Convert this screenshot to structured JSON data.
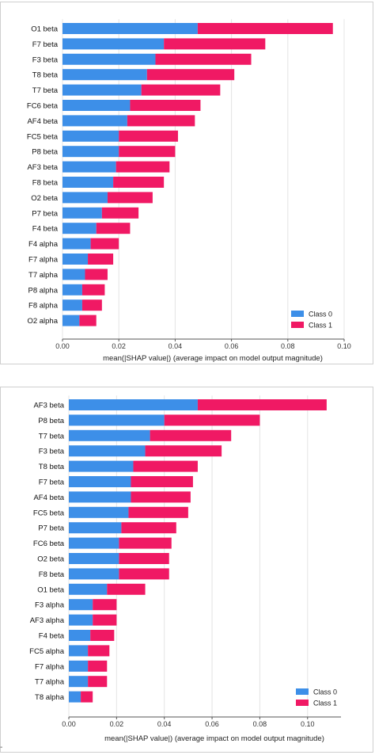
{
  "chart_data": [
    {
      "type": "bar",
      "stacked": true,
      "orientation": "horizontal",
      "categories": [
        "O1 beta",
        "F7 beta",
        "F3 beta",
        "T8 beta",
        "T7 beta",
        "FC6 beta",
        "AF4 beta",
        "FC5 beta",
        "P8 beta",
        "AF3 beta",
        "F8 beta",
        "O2 beta",
        "P7 beta",
        "F4 beta",
        "F4 alpha",
        "F7 alpha",
        "T7 alpha",
        "P8 alpha",
        "F8 alpha",
        "O2 alpha"
      ],
      "series": [
        {
          "name": "Class 0",
          "color": "#3d8fe8",
          "values": [
            0.048,
            0.036,
            0.033,
            0.03,
            0.028,
            0.024,
            0.023,
            0.02,
            0.02,
            0.019,
            0.018,
            0.016,
            0.014,
            0.012,
            0.01,
            0.009,
            0.008,
            0.007,
            0.007,
            0.006
          ]
        },
        {
          "name": "Class 1",
          "color": "#f01964",
          "values": [
            0.048,
            0.036,
            0.034,
            0.031,
            0.028,
            0.025,
            0.024,
            0.021,
            0.02,
            0.019,
            0.018,
            0.016,
            0.013,
            0.012,
            0.01,
            0.009,
            0.008,
            0.008,
            0.007,
            0.006
          ]
        }
      ],
      "xlabel": "mean(|SHAP value|) (average impact on model output magnitude)",
      "xticks": [
        "0.00",
        "0.02",
        "0.04",
        "0.06",
        "0.08",
        "0.10"
      ],
      "xlim": [
        0,
        0.1
      ],
      "grid": true,
      "legend_position": "bottom-right"
    },
    {
      "type": "bar",
      "stacked": true,
      "orientation": "horizontal",
      "categories": [
        "AF3 beta",
        "P8 beta",
        "T7 beta",
        "F3 beta",
        "T8 beta",
        "F7 beta",
        "AF4 beta",
        "FC5 beta",
        "P7 beta",
        "FC6 beta",
        "O2 beta",
        "F8 beta",
        "O1 beta",
        "F3 alpha",
        "AF3 alpha",
        "F4 beta",
        "FC5 alpha",
        "F7 alpha",
        "T7 alpha",
        "T8 alpha"
      ],
      "series": [
        {
          "name": "Class 0",
          "color": "#3d8fe8",
          "values": [
            0.054,
            0.04,
            0.034,
            0.032,
            0.027,
            0.026,
            0.026,
            0.025,
            0.022,
            0.021,
            0.021,
            0.021,
            0.016,
            0.01,
            0.01,
            0.009,
            0.008,
            0.008,
            0.008,
            0.005
          ]
        },
        {
          "name": "Class 1",
          "color": "#f01964",
          "values": [
            0.054,
            0.04,
            0.034,
            0.032,
            0.027,
            0.026,
            0.025,
            0.025,
            0.023,
            0.022,
            0.021,
            0.021,
            0.016,
            0.01,
            0.01,
            0.01,
            0.009,
            0.008,
            0.008,
            0.005
          ]
        }
      ],
      "xlabel": "mean(|SHAP value|) (average impact on model output magnitude)",
      "xticks": [
        "0.00",
        "0.02",
        "0.04",
        "0.06",
        "0.08",
        "0.10"
      ],
      "xlim": [
        0,
        0.114
      ],
      "grid": true,
      "legend_position": "bottom-right"
    }
  ],
  "corner_mark": "-"
}
